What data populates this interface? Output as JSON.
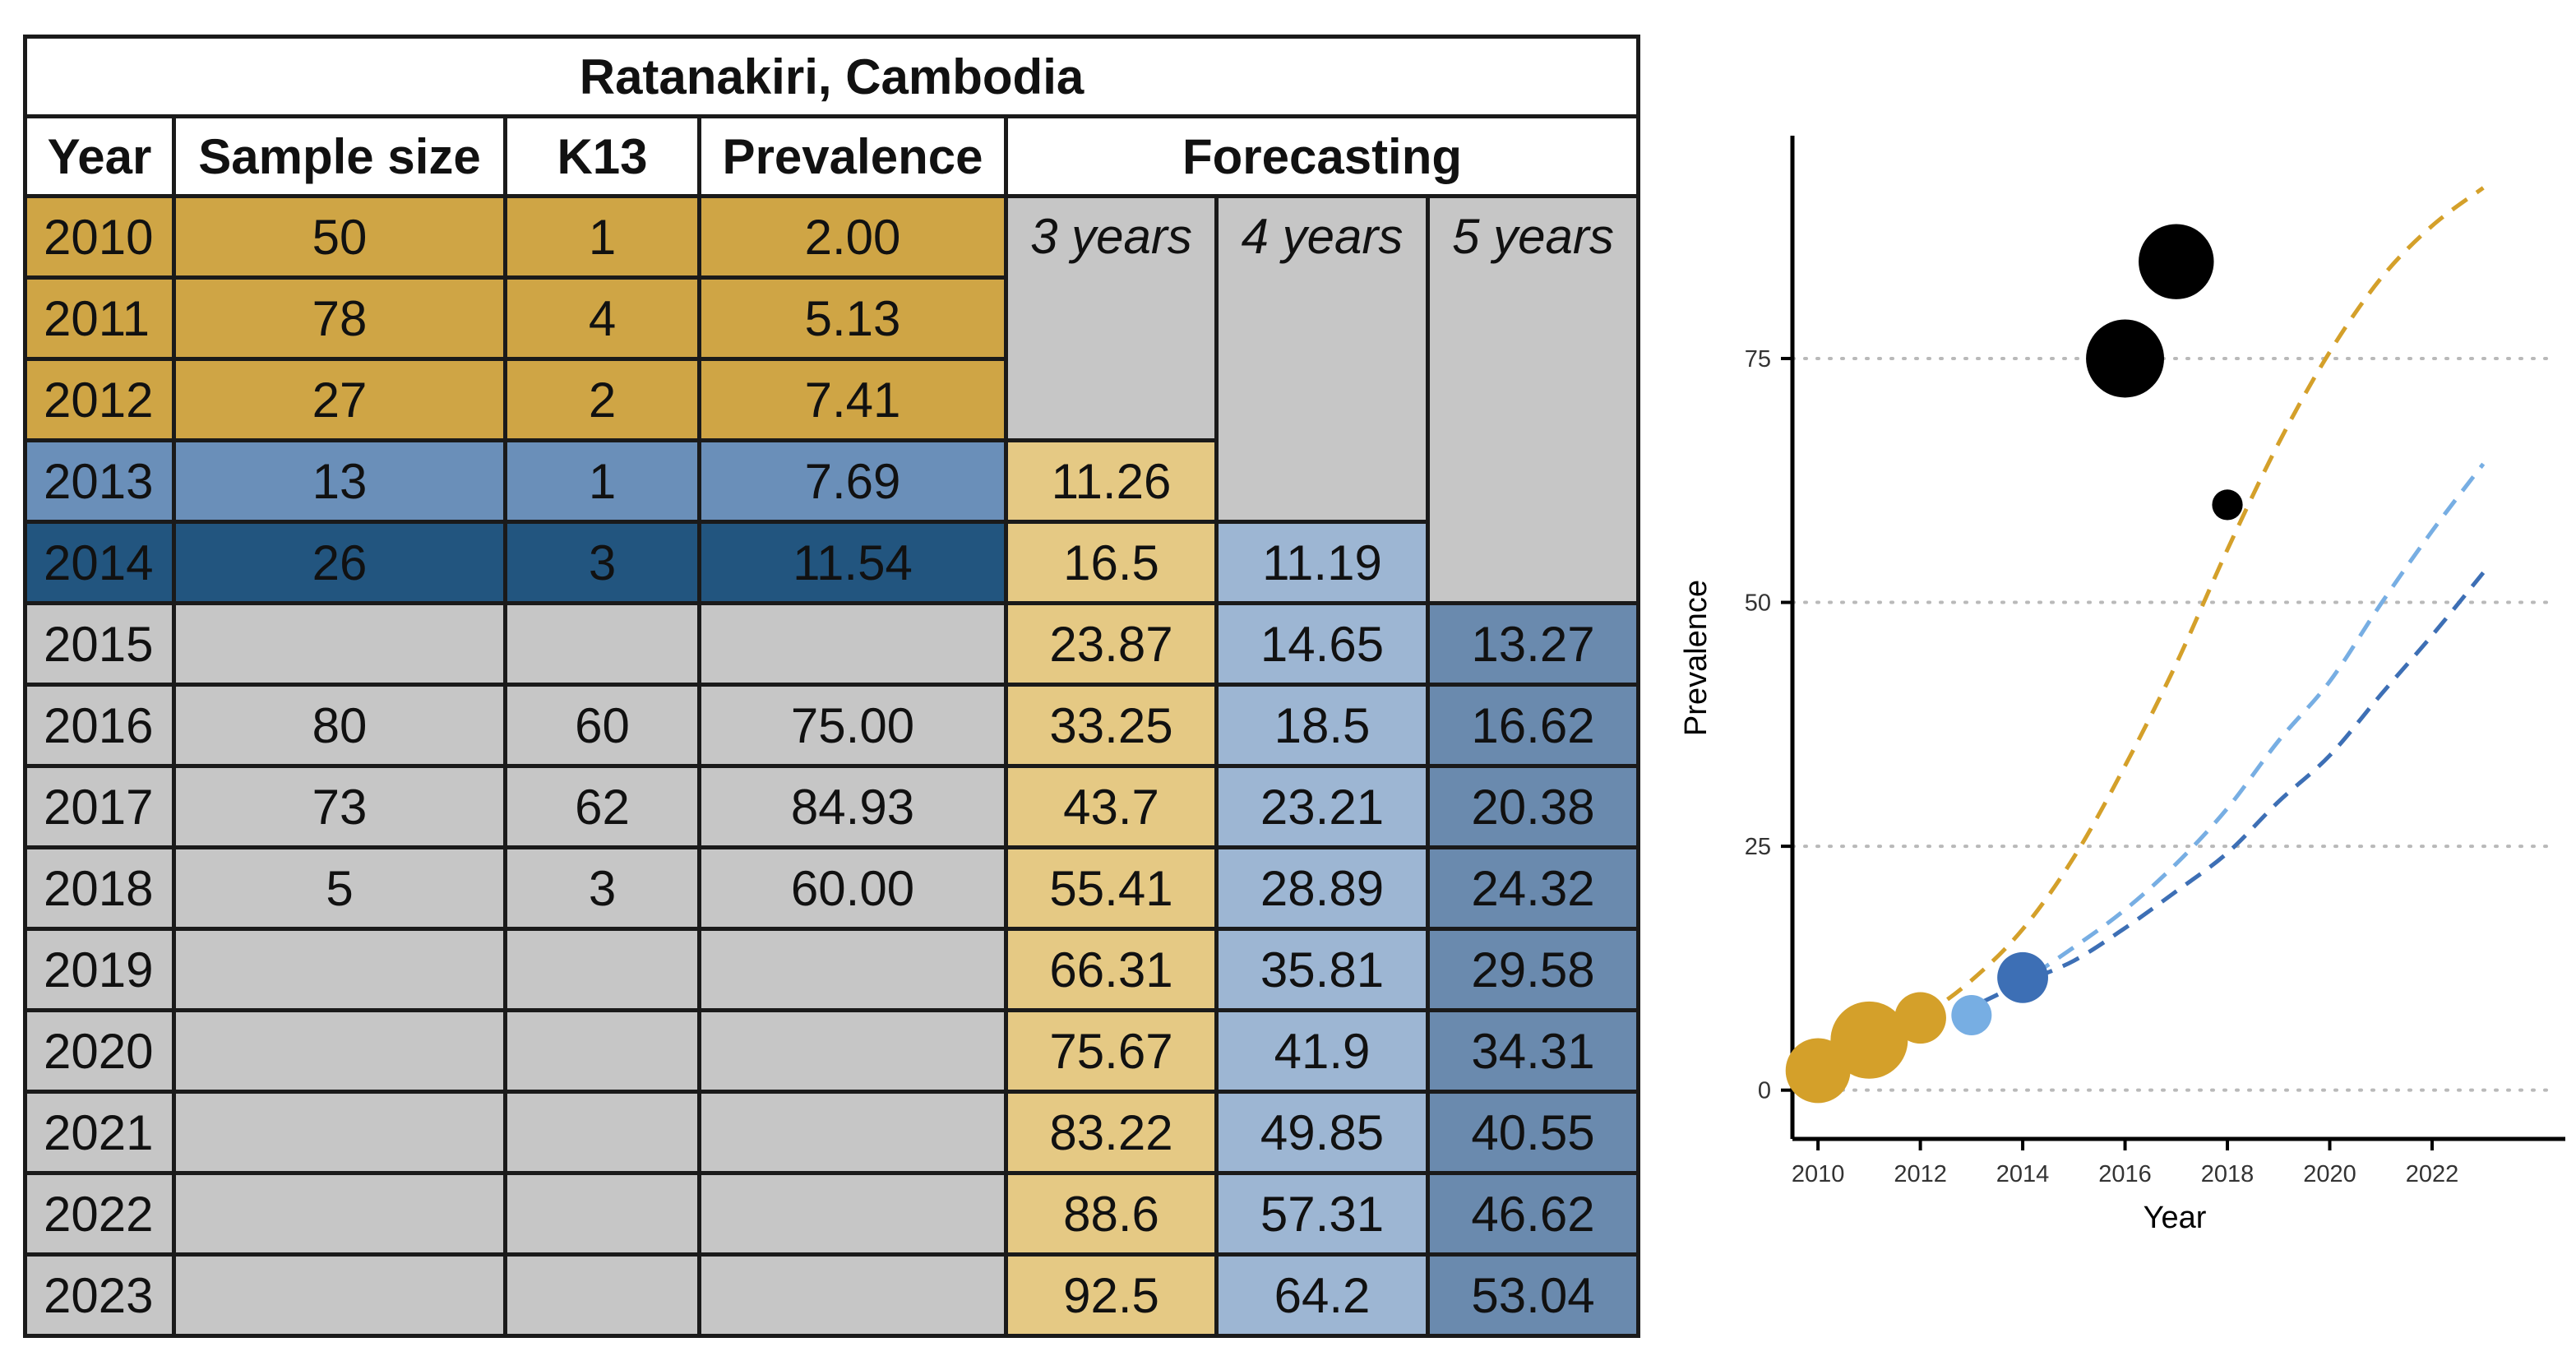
{
  "table": {
    "title": "Ratanakiri, Cambodia",
    "headers": [
      "Year",
      "Sample size",
      "K13",
      "Prevalence"
    ],
    "forecast_header": "Forecasting",
    "forecast_subheaders": [
      "3 years",
      "4 years",
      "5 years"
    ],
    "rows": [
      {
        "year": "2010",
        "sample": "50",
        "k13": "1",
        "prev": "2.00",
        "f3": "",
        "f4": "",
        "f5": ""
      },
      {
        "year": "2011",
        "sample": "78",
        "k13": "4",
        "prev": "5.13",
        "f3": "",
        "f4": "",
        "f5": ""
      },
      {
        "year": "2012",
        "sample": "27",
        "k13": "2",
        "prev": "7.41",
        "f3": "",
        "f4": "",
        "f5": ""
      },
      {
        "year": "2013",
        "sample": "13",
        "k13": "1",
        "prev": "7.69",
        "f3": "11.26",
        "f4": "",
        "f5": ""
      },
      {
        "year": "2014",
        "sample": "26",
        "k13": "3",
        "prev": "11.54",
        "f3": "16.5",
        "f4": "11.19",
        "f5": ""
      },
      {
        "year": "2015",
        "sample": "",
        "k13": "",
        "prev": "",
        "f3": "23.87",
        "f4": "14.65",
        "f5": "13.27"
      },
      {
        "year": "2016",
        "sample": "80",
        "k13": "60",
        "prev": "75.00",
        "f3": "33.25",
        "f4": "18.5",
        "f5": "16.62"
      },
      {
        "year": "2017",
        "sample": "73",
        "k13": "62",
        "prev": "84.93",
        "f3": "43.7",
        "f4": "23.21",
        "f5": "20.38"
      },
      {
        "year": "2018",
        "sample": "5",
        "k13": "3",
        "prev": "60.00",
        "f3": "55.41",
        "f4": "28.89",
        "f5": "24.32"
      },
      {
        "year": "2019",
        "sample": "",
        "k13": "",
        "prev": "",
        "f3": "66.31",
        "f4": "35.81",
        "f5": "29.58"
      },
      {
        "year": "2020",
        "sample": "",
        "k13": "",
        "prev": "",
        "f3": "75.67",
        "f4": "41.9",
        "f5": "34.31"
      },
      {
        "year": "2021",
        "sample": "",
        "k13": "",
        "prev": "",
        "f3": "83.22",
        "f4": "49.85",
        "f5": "40.55"
      },
      {
        "year": "2022",
        "sample": "",
        "k13": "",
        "prev": "",
        "f3": "88.6",
        "f4": "57.31",
        "f5": "46.62"
      },
      {
        "year": "2023",
        "sample": "",
        "k13": "",
        "prev": "",
        "f3": "92.5",
        "f4": "64.2",
        "f5": "53.04"
      }
    ],
    "colors": {
      "gold": "#cfa545",
      "mid_blue": "#6a8fb9",
      "dark_blue": "#22557f",
      "grey": "#c6c6c6",
      "light_gold": "#e5c984",
      "light_blue": "#9db6d3",
      "steel_blue": "#6a8aae"
    }
  },
  "chart_data": {
    "type": "scatter",
    "title": "",
    "xlabel": "Year",
    "ylabel": "Prevalence",
    "xlim": [
      2009.5,
      2023.8
    ],
    "ylim": [
      -5,
      97
    ],
    "xticks": [
      2010,
      2012,
      2014,
      2016,
      2018,
      2020,
      2022
    ],
    "yticks": [
      0,
      25,
      50,
      75
    ],
    "grid": "horizontal dotted",
    "points": [
      {
        "x": 2010,
        "y": 2.0,
        "n": 50,
        "color": "#d4a02a"
      },
      {
        "x": 2011,
        "y": 5.13,
        "n": 78,
        "color": "#d4a02a"
      },
      {
        "x": 2012,
        "y": 7.41,
        "n": 27,
        "color": "#d4a02a"
      },
      {
        "x": 2013,
        "y": 7.69,
        "n": 13,
        "color": "#77aee3"
      },
      {
        "x": 2014,
        "y": 11.54,
        "n": 26,
        "color": "#3d6fb5"
      },
      {
        "x": 2016,
        "y": 75.0,
        "n": 80,
        "color": "#000000"
      },
      {
        "x": 2017,
        "y": 84.93,
        "n": 73,
        "color": "#000000"
      },
      {
        "x": 2018,
        "y": 60.0,
        "n": 5,
        "color": "#000000"
      }
    ],
    "series": [
      {
        "color": "#d4a02a",
        "style": "dashed",
        "x": [
          2010,
          2011,
          2012,
          2013,
          2014,
          2015,
          2016,
          2017,
          2018,
          2019,
          2020,
          2021,
          2022,
          2023
        ],
        "y": [
          2.0,
          4.5,
          7.4,
          11.26,
          16.5,
          23.87,
          33.25,
          43.7,
          55.41,
          66.31,
          75.67,
          83.22,
          88.6,
          92.5
        ]
      },
      {
        "color": "#77aee3",
        "style": "dashed",
        "x": [
          2010,
          2011,
          2012,
          2013,
          2014,
          2015,
          2016,
          2017,
          2018,
          2019,
          2020,
          2021,
          2022,
          2023
        ],
        "y": [
          2.0,
          4.0,
          6.0,
          8.5,
          11.19,
          14.65,
          18.5,
          23.21,
          28.89,
          35.81,
          41.9,
          49.85,
          57.31,
          64.2
        ]
      },
      {
        "color": "#3d6fb5",
        "style": "dashed",
        "x": [
          2010,
          2011,
          2012,
          2013,
          2014,
          2015,
          2016,
          2017,
          2018,
          2019,
          2020,
          2021,
          2022,
          2023
        ],
        "y": [
          2.0,
          3.8,
          6.0,
          8.5,
          11.0,
          13.27,
          16.62,
          20.38,
          24.32,
          29.58,
          34.31,
          40.55,
          46.62,
          53.04
        ]
      }
    ]
  }
}
